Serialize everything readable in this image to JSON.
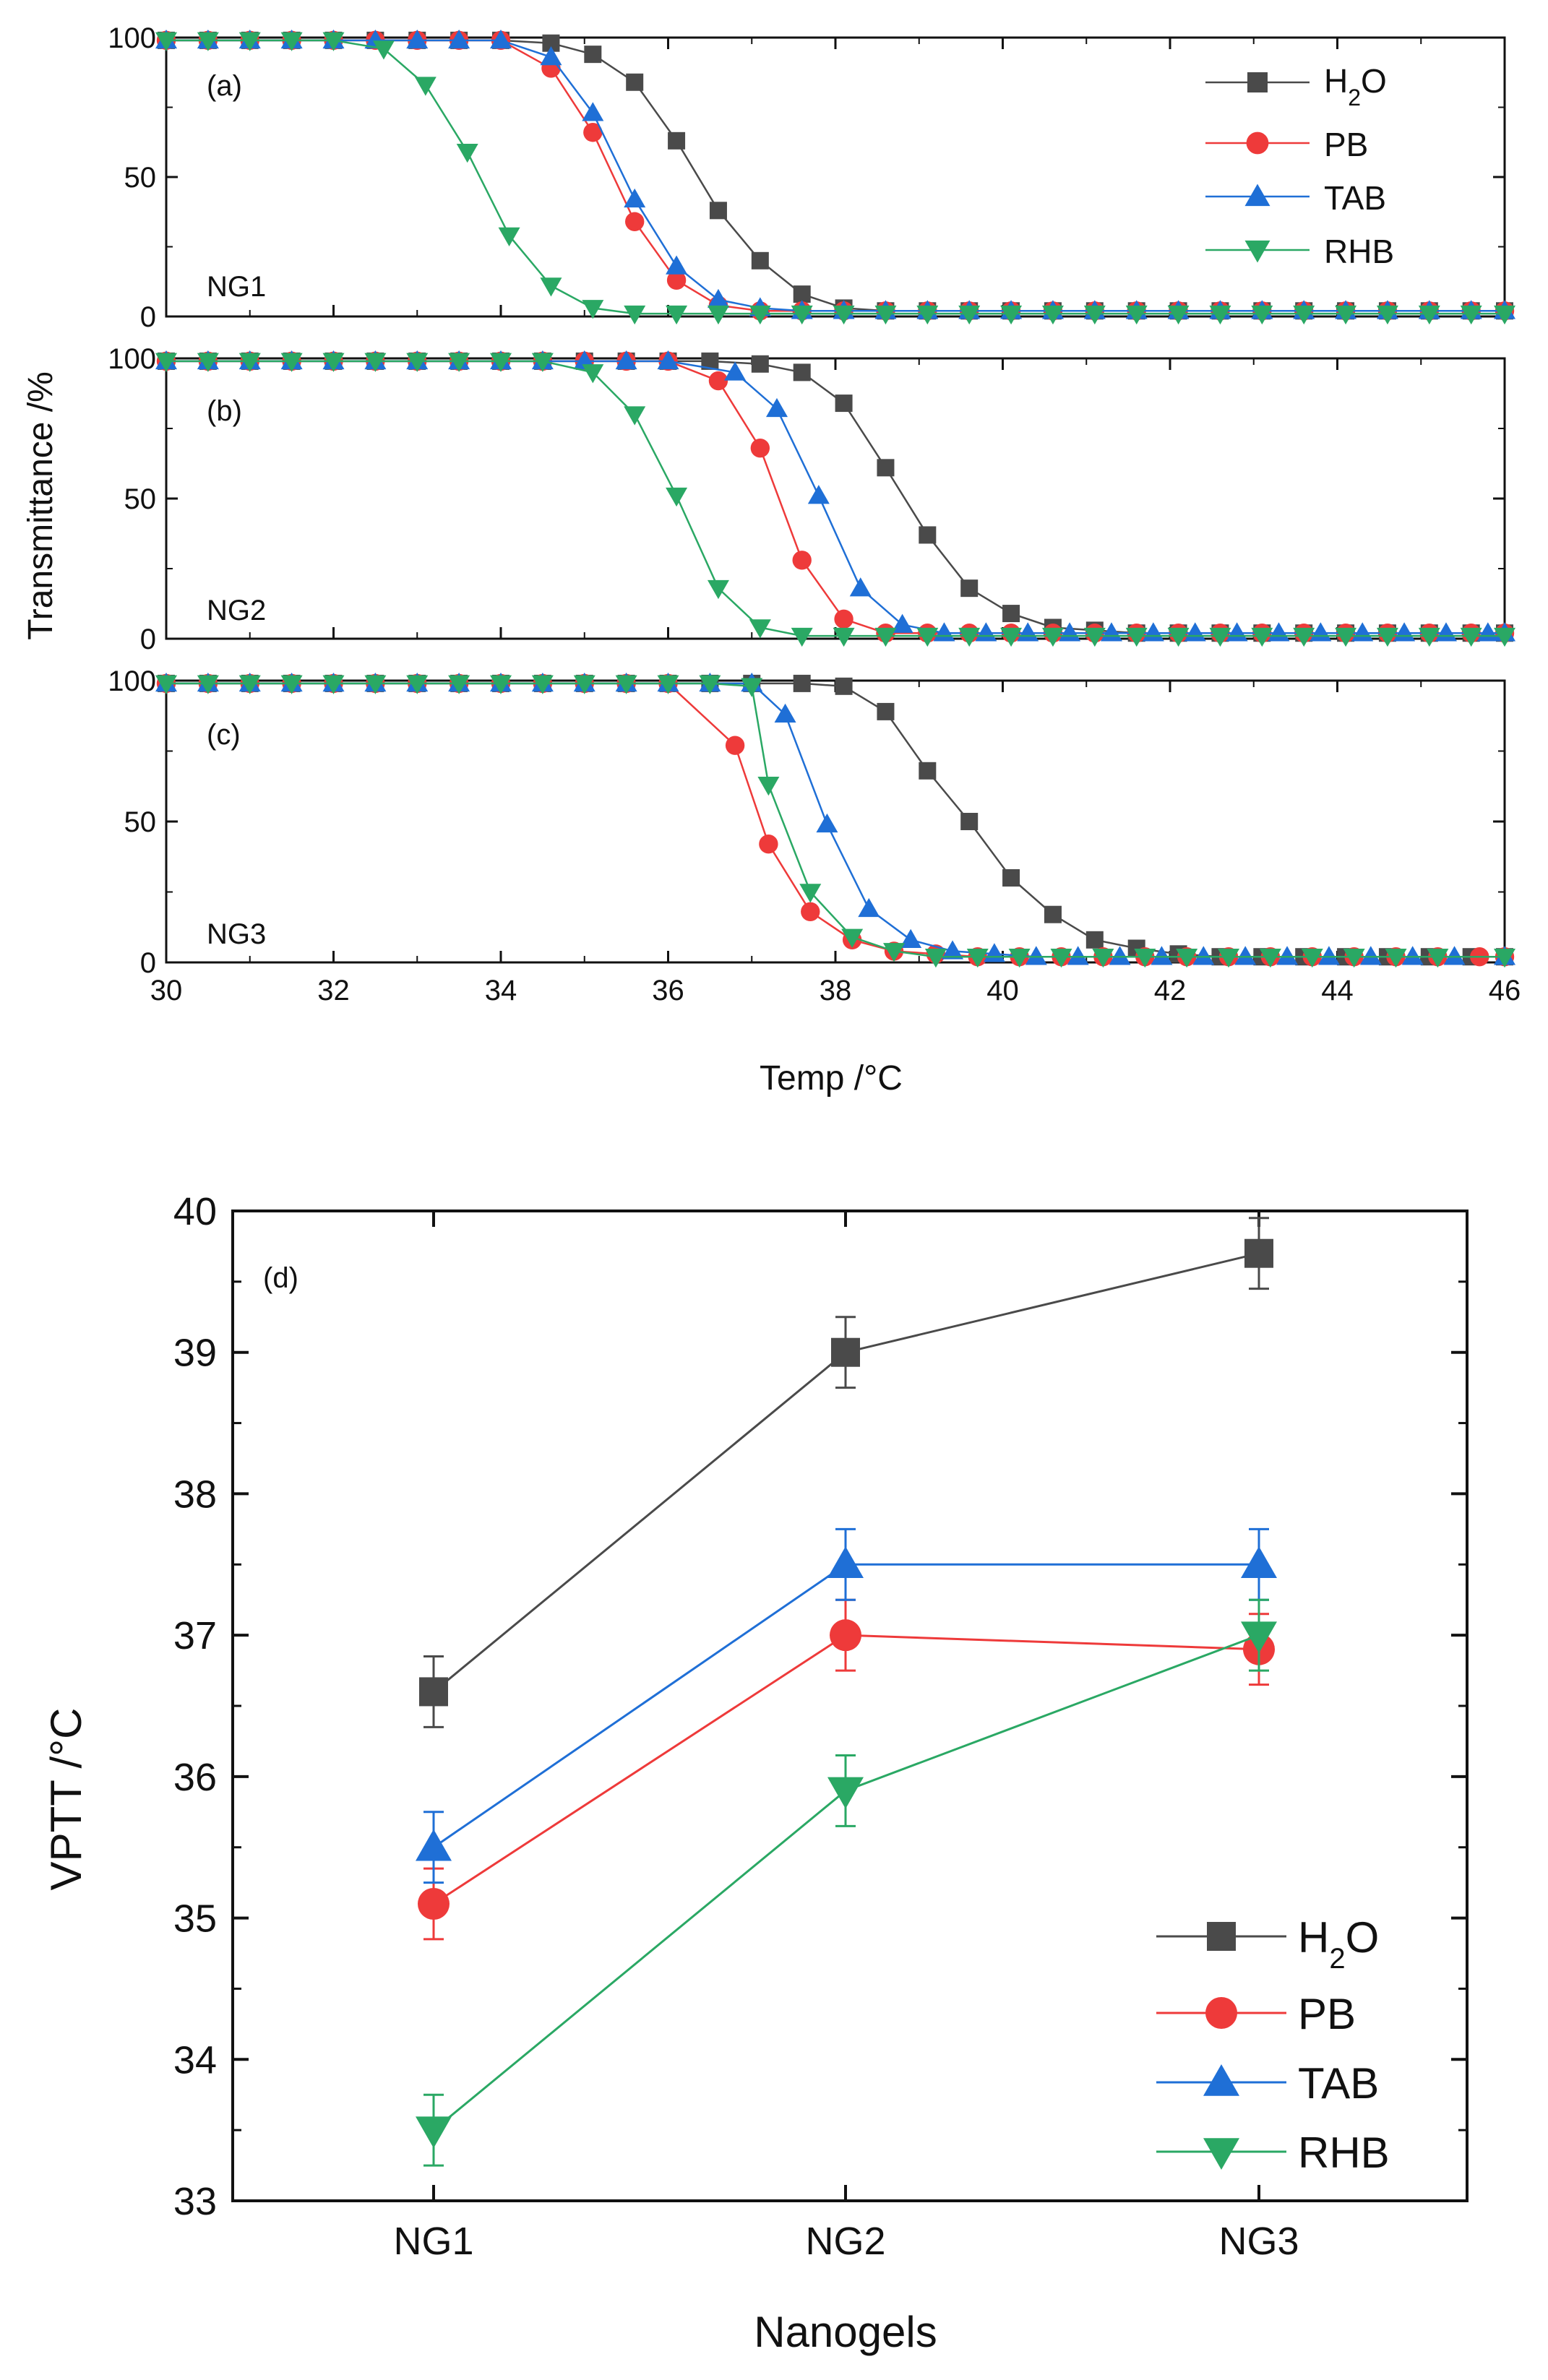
{
  "colors": {
    "H2O": "#4a4a4a",
    "PB": "#ee3a3a",
    "TAB": "#1f6fd6",
    "RHB": "#2aa864"
  },
  "chart_data": [
    {
      "type": "line",
      "panel": "(a)",
      "label": "NG1",
      "xlabel": "Temp /°C",
      "ylabel": "Transmittance /%",
      "xlim": [
        30,
        46
      ],
      "ylim": [
        0,
        100
      ],
      "yticks": [
        0,
        50,
        100
      ],
      "series": [
        {
          "name": "H2O",
          "marker": "square",
          "x": [
            30,
            30.5,
            31,
            31.5,
            32,
            32.5,
            33,
            33.5,
            34,
            34.6,
            35.1,
            35.6,
            36.1,
            36.6,
            37.1,
            37.6,
            38.1,
            38.6,
            39.1,
            39.6,
            40.1,
            40.6,
            41.1,
            41.6,
            42.1,
            42.6,
            43.1,
            43.6,
            44.1,
            44.6,
            45.1,
            45.6,
            46
          ],
          "y": [
            99,
            99,
            99,
            99,
            99,
            99,
            99,
            99,
            99,
            98,
            94,
            84,
            63,
            38,
            20,
            8,
            3,
            2,
            2,
            2,
            2,
            2,
            2,
            2,
            2,
            2,
            2,
            2,
            2,
            2,
            2,
            2,
            2
          ]
        },
        {
          "name": "PB",
          "marker": "circle",
          "x": [
            30,
            30.5,
            31,
            31.5,
            32,
            32.5,
            33,
            33.5,
            34,
            34.6,
            35.1,
            35.6,
            36.1,
            36.6,
            37.1,
            37.6,
            38.1,
            38.6,
            39.1,
            39.6,
            40.1,
            40.6,
            41.1,
            41.6,
            42.1,
            42.6,
            43.1,
            43.6,
            44.1,
            44.6,
            45.1,
            45.6,
            46
          ],
          "y": [
            99,
            99,
            99,
            99,
            99,
            99,
            99,
            99,
            99,
            89,
            66,
            34,
            13,
            4,
            2,
            2,
            2,
            2,
            2,
            2,
            2,
            2,
            2,
            2,
            2,
            2,
            2,
            2,
            2,
            2,
            2,
            2,
            2
          ]
        },
        {
          "name": "TAB",
          "marker": "triangle-up",
          "x": [
            30,
            30.5,
            31,
            31.5,
            32,
            32.5,
            33,
            33.5,
            34,
            34.6,
            35.1,
            35.6,
            36.1,
            36.6,
            37.1,
            37.6,
            38.1,
            38.6,
            39.1,
            39.6,
            40.1,
            40.6,
            41.1,
            41.6,
            42.1,
            42.6,
            43.1,
            43.6,
            44.1,
            44.6,
            45.1,
            45.6,
            46
          ],
          "y": [
            99,
            99,
            99,
            99,
            99,
            99,
            99,
            99,
            99,
            93,
            73,
            42,
            18,
            6,
            3,
            2,
            2,
            2,
            2,
            2,
            2,
            2,
            2,
            2,
            2,
            2,
            2,
            2,
            2,
            2,
            2,
            2,
            2
          ]
        },
        {
          "name": "RHB",
          "marker": "triangle-down",
          "x": [
            30,
            30.5,
            31,
            31.5,
            32,
            32.6,
            33.1,
            33.6,
            34.1,
            34.6,
            35.1,
            35.6,
            36.1,
            36.6,
            37.1,
            37.6,
            38.1,
            38.6,
            39.1,
            39.6,
            40.1,
            40.6,
            41.1,
            41.6,
            42.1,
            42.6,
            43.1,
            43.6,
            44.1,
            44.6,
            45.1,
            45.6,
            46
          ],
          "y": [
            99,
            99,
            99,
            99,
            99,
            96,
            83,
            59,
            29,
            11,
            3,
            1,
            1,
            1,
            1,
            1,
            1,
            1,
            1,
            1,
            1,
            1,
            1,
            1,
            1,
            1,
            1,
            1,
            1,
            1,
            1,
            1,
            1
          ]
        }
      ]
    },
    {
      "type": "line",
      "panel": "(b)",
      "label": "NG2",
      "xlim": [
        30,
        46
      ],
      "ylim": [
        0,
        100
      ],
      "yticks": [
        0,
        50,
        100
      ],
      "series": [
        {
          "name": "H2O",
          "marker": "square",
          "x": [
            30,
            30.5,
            31,
            31.5,
            32,
            32.5,
            33,
            33.5,
            34,
            34.5,
            35,
            35.5,
            36,
            36.5,
            37.1,
            37.6,
            38.1,
            38.6,
            39.1,
            39.6,
            40.1,
            40.6,
            41.1,
            41.6,
            42.1,
            42.6,
            43.1,
            43.6,
            44.1,
            44.6,
            45.1,
            45.6,
            46
          ],
          "y": [
            99,
            99,
            99,
            99,
            99,
            99,
            99,
            99,
            99,
            99,
            99,
            99,
            99,
            99,
            98,
            95,
            84,
            61,
            37,
            18,
            9,
            4,
            3,
            2,
            2,
            2,
            2,
            2,
            2,
            2,
            2,
            2,
            2
          ]
        },
        {
          "name": "PB",
          "marker": "circle",
          "x": [
            30,
            30.5,
            31,
            31.5,
            32,
            32.5,
            33,
            33.5,
            34,
            34.5,
            35,
            35.5,
            36,
            36.6,
            37.1,
            37.6,
            38.1,
            38.6,
            39.1,
            39.6,
            40.1,
            40.6,
            41.1,
            41.6,
            42.1,
            42.6,
            43.1,
            43.6,
            44.1,
            44.6,
            45.1,
            45.6,
            46
          ],
          "y": [
            99,
            99,
            99,
            99,
            99,
            99,
            99,
            99,
            99,
            99,
            99,
            99,
            99,
            92,
            68,
            28,
            7,
            2,
            2,
            2,
            2,
            2,
            2,
            2,
            2,
            2,
            2,
            2,
            2,
            2,
            2,
            2,
            2
          ]
        },
        {
          "name": "TAB",
          "marker": "triangle-up",
          "x": [
            30,
            30.5,
            31,
            31.5,
            32,
            32.5,
            33,
            33.5,
            34,
            34.5,
            35,
            35.5,
            36,
            36.8,
            37.3,
            37.8,
            38.3,
            38.8,
            39.3,
            39.8,
            40.3,
            40.8,
            41.3,
            41.8,
            42.3,
            42.8,
            43.3,
            43.8,
            44.3,
            44.8,
            45.3,
            45.8,
            46
          ],
          "y": [
            99,
            99,
            99,
            99,
            99,
            99,
            99,
            99,
            99,
            99,
            99,
            99,
            99,
            95,
            82,
            51,
            18,
            5,
            2,
            2,
            2,
            2,
            2,
            2,
            2,
            2,
            2,
            2,
            2,
            2,
            2,
            2,
            2
          ]
        },
        {
          "name": "RHB",
          "marker": "triangle-down",
          "x": [
            30,
            30.5,
            31,
            31.5,
            32,
            32.5,
            33,
            33.5,
            34,
            34.5,
            35.1,
            35.6,
            36.1,
            36.6,
            37.1,
            37.6,
            38.1,
            38.6,
            39.1,
            39.6,
            40.1,
            40.6,
            41.1,
            41.6,
            42.1,
            42.6,
            43.1,
            43.6,
            44.1,
            44.6,
            45.1,
            45.6,
            46
          ],
          "y": [
            99,
            99,
            99,
            99,
            99,
            99,
            99,
            99,
            99,
            99,
            95,
            80,
            51,
            18,
            4,
            1,
            1,
            1,
            1,
            1,
            1,
            1,
            1,
            1,
            1,
            1,
            1,
            1,
            1,
            1,
            1,
            1,
            1
          ]
        }
      ]
    },
    {
      "type": "line",
      "panel": "(c)",
      "label": "NG3",
      "xlim": [
        30,
        46
      ],
      "ylim": [
        0,
        100
      ],
      "yticks": [
        0,
        50,
        100
      ],
      "xticks": [
        30,
        32,
        34,
        36,
        38,
        40,
        42,
        44,
        46
      ],
      "series": [
        {
          "name": "H2O",
          "marker": "square",
          "x": [
            30,
            30.5,
            31,
            31.5,
            32,
            32.5,
            33,
            33.5,
            34,
            34.5,
            35,
            35.5,
            36,
            36.5,
            37,
            37.6,
            38.1,
            38.6,
            39.1,
            39.6,
            40.1,
            40.6,
            41.1,
            41.6,
            42.1,
            42.6,
            43.1,
            43.6,
            44.1,
            44.6,
            45.1,
            45.6,
            46
          ],
          "y": [
            99,
            99,
            99,
            99,
            99,
            99,
            99,
            99,
            99,
            99,
            99,
            99,
            99,
            99,
            99,
            99,
            98,
            89,
            68,
            50,
            30,
            17,
            8,
            5,
            3,
            2,
            2,
            2,
            2,
            2,
            2,
            2,
            2
          ]
        },
        {
          "name": "PB",
          "marker": "circle",
          "x": [
            30,
            30.5,
            31,
            31.5,
            32,
            32.5,
            33,
            33.5,
            34,
            34.5,
            35,
            35.5,
            36,
            36.8,
            37.2,
            37.7,
            38.2,
            38.7,
            39.2,
            39.7,
            40.2,
            40.7,
            41.2,
            41.7,
            42.2,
            42.7,
            43.2,
            43.7,
            44.2,
            44.7,
            45.2,
            45.7,
            46
          ],
          "y": [
            99,
            99,
            99,
            99,
            99,
            99,
            99,
            99,
            99,
            99,
            99,
            99,
            99,
            77,
            42,
            18,
            8,
            4,
            3,
            2,
            2,
            2,
            2,
            2,
            2,
            2,
            2,
            2,
            2,
            2,
            2,
            2,
            2
          ]
        },
        {
          "name": "TAB",
          "marker": "triangle-up",
          "x": [
            30,
            30.5,
            31,
            31.5,
            32,
            32.5,
            33,
            33.5,
            34,
            34.5,
            35,
            35.5,
            36,
            36.5,
            37,
            37.4,
            37.9,
            38.4,
            38.9,
            39.4,
            39.9,
            40.4,
            40.9,
            41.4,
            41.9,
            42.4,
            42.9,
            43.4,
            43.9,
            44.4,
            44.9,
            45.4,
            46
          ],
          "y": [
            99,
            99,
            99,
            99,
            99,
            99,
            99,
            99,
            99,
            99,
            99,
            99,
            99,
            99,
            99,
            88,
            49,
            19,
            8,
            4,
            3,
            2,
            2,
            2,
            2,
            2,
            2,
            2,
            2,
            2,
            2,
            2,
            2
          ]
        },
        {
          "name": "RHB",
          "marker": "triangle-down",
          "x": [
            30,
            30.5,
            31,
            31.5,
            32,
            32.5,
            33,
            33.5,
            34,
            34.5,
            35,
            35.5,
            36,
            36.5,
            37,
            37.2,
            37.7,
            38.2,
            38.7,
            39.2,
            39.7,
            40.2,
            40.7,
            41.2,
            41.7,
            42.2,
            42.7,
            43.2,
            43.7,
            44.2,
            44.7,
            45.2,
            46
          ],
          "y": [
            99,
            99,
            99,
            99,
            99,
            99,
            99,
            99,
            99,
            99,
            99,
            99,
            99,
            99,
            98,
            63,
            25,
            9,
            4,
            2,
            2,
            2,
            2,
            2,
            2,
            2,
            2,
            2,
            2,
            2,
            2,
            2,
            2
          ]
        }
      ]
    },
    {
      "type": "line",
      "panel": "(d)",
      "xlabel": "Nanogels",
      "ylabel": "VPTT /°C",
      "categories": [
        "NG1",
        "NG2",
        "NG3"
      ],
      "ylim": [
        33,
        40
      ],
      "yticks": [
        33,
        34,
        35,
        36,
        37,
        38,
        39,
        40
      ],
      "series": [
        {
          "name": "H2O",
          "marker": "square",
          "values": [
            36.6,
            39.0,
            39.7
          ],
          "errors": [
            0.25,
            0.25,
            0.25
          ]
        },
        {
          "name": "PB",
          "marker": "circle",
          "values": [
            35.1,
            37.0,
            36.9
          ],
          "errors": [
            0.25,
            0.25,
            0.25
          ]
        },
        {
          "name": "TAB",
          "marker": "triangle-up",
          "values": [
            35.5,
            37.5,
            37.5
          ],
          "errors": [
            0.25,
            0.25,
            0.25
          ]
        },
        {
          "name": "RHB",
          "marker": "triangle-down",
          "values": [
            33.5,
            35.9,
            37.0
          ],
          "errors": [
            0.25,
            0.25,
            0.25
          ]
        }
      ]
    }
  ],
  "legend": [
    {
      "key": "H2O",
      "main": "H",
      "sub": "2",
      "tail": "O"
    },
    {
      "key": "PB",
      "main": "PB",
      "sub": "",
      "tail": ""
    },
    {
      "key": "TAB",
      "main": "TAB",
      "sub": "",
      "tail": ""
    },
    {
      "key": "RHB",
      "main": "RHB",
      "sub": "",
      "tail": ""
    }
  ]
}
